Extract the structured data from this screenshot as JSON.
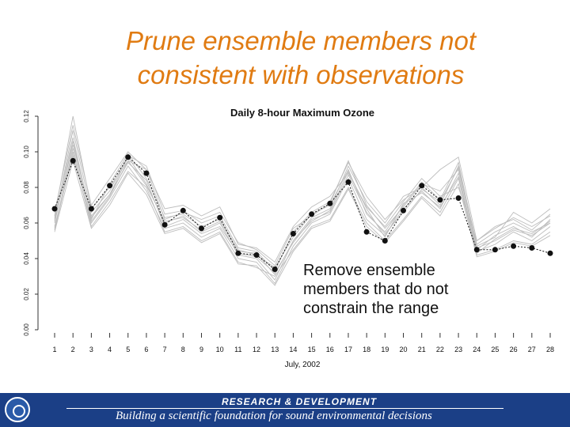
{
  "slide": {
    "title_line1": "Prune ensemble members not",
    "title_line2": "consistent with observations",
    "callout": "Remove ensemble members that do not constrain the range"
  },
  "footer": {
    "top_text": "RESEARCH & DEVELOPMENT",
    "bottom_text": "Building a scientific foundation for sound environmental decisions",
    "logo_icon": "epa-seal-icon"
  },
  "colors": {
    "title": "#e07b12",
    "footer_bg": "#1b3f86",
    "ensemble_line": "#bdbdbd",
    "observed": "#111111"
  },
  "chart_data": {
    "type": "line",
    "title": "Daily 8-hour Maximum Ozone",
    "xlabel": "July, 2002",
    "ylabel": "",
    "ylim": [
      0,
      0.12
    ],
    "yticks": [
      "0.00",
      "0.02",
      "0.04",
      "0.06",
      "0.08",
      "0.10",
      "0.12"
    ],
    "x": [
      1,
      2,
      3,
      4,
      5,
      6,
      7,
      8,
      9,
      10,
      11,
      12,
      13,
      14,
      15,
      16,
      17,
      18,
      19,
      20,
      21,
      22,
      23,
      24,
      25,
      26,
      27,
      28
    ],
    "observed": [
      0.068,
      0.095,
      0.068,
      0.081,
      0.097,
      0.088,
      0.059,
      0.067,
      0.057,
      0.063,
      0.043,
      0.042,
      0.034,
      0.054,
      0.065,
      0.071,
      0.083,
      0.055,
      0.05,
      0.067,
      0.081,
      0.073,
      0.074,
      0.045,
      0.045,
      0.047,
      0.046,
      0.043
    ],
    "ensemble": [
      [
        0.066,
        0.115,
        0.07,
        0.085,
        0.1,
        0.09,
        0.068,
        0.07,
        0.064,
        0.069,
        0.048,
        0.046,
        0.038,
        0.058,
        0.069,
        0.075,
        0.088,
        0.069,
        0.058,
        0.072,
        0.085,
        0.075,
        0.08,
        0.05,
        0.058,
        0.062,
        0.056,
        0.065
      ],
      [
        0.063,
        0.108,
        0.062,
        0.082,
        0.099,
        0.085,
        0.063,
        0.065,
        0.058,
        0.062,
        0.045,
        0.042,
        0.035,
        0.052,
        0.065,
        0.07,
        0.09,
        0.065,
        0.055,
        0.07,
        0.083,
        0.073,
        0.094,
        0.045,
        0.053,
        0.058,
        0.052,
        0.062
      ],
      [
        0.061,
        0.104,
        0.064,
        0.076,
        0.097,
        0.082,
        0.06,
        0.064,
        0.055,
        0.06,
        0.042,
        0.04,
        0.028,
        0.05,
        0.063,
        0.068,
        0.092,
        0.072,
        0.06,
        0.075,
        0.08,
        0.07,
        0.092,
        0.048,
        0.055,
        0.06,
        0.055,
        0.06
      ],
      [
        0.058,
        0.098,
        0.06,
        0.074,
        0.092,
        0.078,
        0.057,
        0.06,
        0.052,
        0.057,
        0.04,
        0.038,
        0.026,
        0.047,
        0.06,
        0.065,
        0.085,
        0.062,
        0.053,
        0.068,
        0.078,
        0.068,
        0.088,
        0.044,
        0.048,
        0.055,
        0.05,
        0.058
      ],
      [
        0.062,
        0.112,
        0.066,
        0.078,
        0.098,
        0.092,
        0.065,
        0.067,
        0.06,
        0.064,
        0.046,
        0.044,
        0.033,
        0.055,
        0.066,
        0.072,
        0.094,
        0.075,
        0.062,
        0.073,
        0.08,
        0.09,
        0.097,
        0.05,
        0.057,
        0.063,
        0.058,
        0.064
      ],
      [
        0.064,
        0.12,
        0.068,
        0.08,
        0.095,
        0.09,
        0.062,
        0.066,
        0.062,
        0.066,
        0.049,
        0.045,
        0.036,
        0.057,
        0.064,
        0.071,
        0.095,
        0.07,
        0.057,
        0.069,
        0.082,
        0.078,
        0.09,
        0.047,
        0.052,
        0.066,
        0.06,
        0.068
      ],
      [
        0.056,
        0.1,
        0.058,
        0.072,
        0.089,
        0.08,
        0.055,
        0.058,
        0.05,
        0.055,
        0.038,
        0.035,
        0.03,
        0.045,
        0.058,
        0.062,
        0.08,
        0.06,
        0.05,
        0.062,
        0.075,
        0.066,
        0.085,
        0.042,
        0.045,
        0.05,
        0.048,
        0.055
      ],
      [
        0.06,
        0.106,
        0.063,
        0.076,
        0.094,
        0.084,
        0.058,
        0.062,
        0.054,
        0.058,
        0.043,
        0.041,
        0.032,
        0.049,
        0.062,
        0.066,
        0.087,
        0.066,
        0.054,
        0.066,
        0.079,
        0.072,
        0.091,
        0.046,
        0.05,
        0.056,
        0.053,
        0.06
      ],
      [
        0.057,
        0.102,
        0.061,
        0.075,
        0.095,
        0.081,
        0.061,
        0.063,
        0.056,
        0.061,
        0.044,
        0.043,
        0.031,
        0.05,
        0.061,
        0.067,
        0.089,
        0.068,
        0.052,
        0.071,
        0.077,
        0.069,
        0.086,
        0.043,
        0.051,
        0.057,
        0.054,
        0.061
      ],
      [
        0.055,
        0.095,
        0.057,
        0.07,
        0.088,
        0.076,
        0.054,
        0.057,
        0.049,
        0.054,
        0.037,
        0.036,
        0.025,
        0.044,
        0.057,
        0.061,
        0.079,
        0.058,
        0.049,
        0.061,
        0.074,
        0.064,
        0.082,
        0.041,
        0.044,
        0.049,
        0.047,
        0.053
      ]
    ]
  }
}
